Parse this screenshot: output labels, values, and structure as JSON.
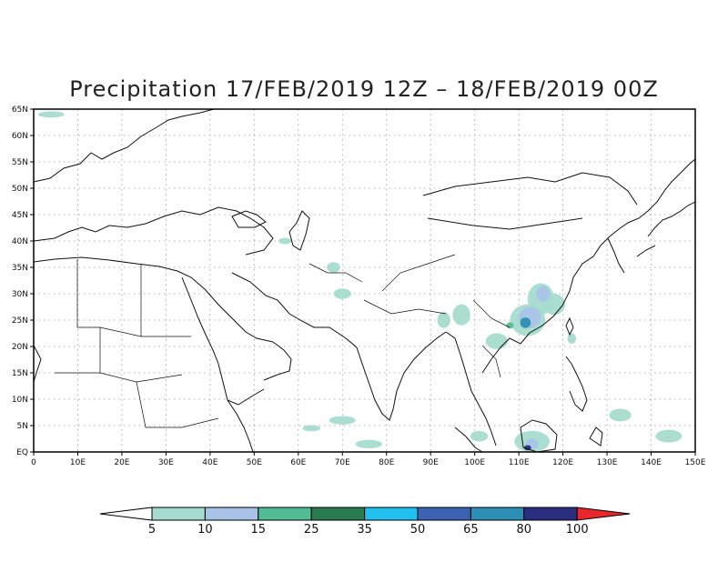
{
  "title": "Precipitation 17/FEB/2019 12Z – 18/FEB/2019 00Z",
  "map": {
    "lon_ticks": [
      "0",
      "10E",
      "20E",
      "30E",
      "40E",
      "50E",
      "60E",
      "70E",
      "80E",
      "90E",
      "100E",
      "110E",
      "120E",
      "130E",
      "140E",
      "150E"
    ],
    "lat_ticks": [
      "EQ",
      "5N",
      "10N",
      "15N",
      "20N",
      "25N",
      "30N",
      "35N",
      "40N",
      "45N",
      "50N",
      "55N",
      "60N",
      "65N"
    ],
    "lon_range": [
      0,
      150
    ],
    "lat_range": [
      0,
      65
    ],
    "gridlines": true
  },
  "colorbar": {
    "labels": [
      "5",
      "10",
      "15",
      "25",
      "35",
      "50",
      "65",
      "80",
      "100"
    ],
    "colors": [
      "#ffffff",
      "#a6dccf",
      "#a9c3e8",
      "#52bd95",
      "#2a7a50",
      "#22c0ee",
      "#3c62b4",
      "#2d8fb4",
      "#2b2d7e",
      "#e8262b"
    ]
  },
  "precip_areas": [
    {
      "level": 0,
      "lon": 112,
      "lat": 25,
      "rlon": 4,
      "rlat": 3
    },
    {
      "level": 0,
      "lon": 115,
      "lat": 29,
      "rlon": 3,
      "rlat": 3
    },
    {
      "level": 0,
      "lon": 118,
      "lat": 28,
      "rlon": 2.5,
      "rlat": 2
    },
    {
      "level": 0,
      "lon": 97,
      "lat": 26,
      "rlon": 2,
      "rlat": 2
    },
    {
      "level": 0,
      "lon": 93,
      "lat": 25,
      "rlon": 1.5,
      "rlat": 1.5
    },
    {
      "level": 0,
      "lon": 105,
      "lat": 21,
      "rlon": 2.5,
      "rlat": 1.5
    },
    {
      "level": 0,
      "lon": 68,
      "lat": 35,
      "rlon": 1.5,
      "rlat": 1
    },
    {
      "level": 0,
      "lon": 70,
      "lat": 30,
      "rlon": 2,
      "rlat": 1
    },
    {
      "level": 0,
      "lon": 57,
      "lat": 40,
      "rlon": 1.5,
      "rlat": 0.6
    },
    {
      "level": 0,
      "lon": 70,
      "lat": 6,
      "rlon": 3,
      "rlat": 0.8
    },
    {
      "level": 0,
      "lon": 63,
      "lat": 4.5,
      "rlon": 2,
      "rlat": 0.6
    },
    {
      "level": 0,
      "lon": 76,
      "lat": 1.5,
      "rlon": 3,
      "rlat": 0.8
    },
    {
      "level": 0,
      "lon": 101,
      "lat": 3,
      "rlon": 2,
      "rlat": 1
    },
    {
      "level": 0,
      "lon": 113,
      "lat": 2,
      "rlon": 4,
      "rlat": 2
    },
    {
      "level": 0,
      "lon": 122,
      "lat": 21.5,
      "rlon": 1,
      "rlat": 1
    },
    {
      "level": 0,
      "lon": 133,
      "lat": 7,
      "rlon": 2.5,
      "rlat": 1.2
    },
    {
      "level": 0,
      "lon": 144,
      "lat": 3,
      "rlon": 3,
      "rlat": 1.2
    },
    {
      "level": 0,
      "lon": 4,
      "lat": 64,
      "rlon": 3,
      "rlat": 0.6
    },
    {
      "level": 1,
      "lon": 112.5,
      "lat": 25.5,
      "rlon": 2.5,
      "rlat": 2
    },
    {
      "level": 1,
      "lon": 115.5,
      "lat": 30,
      "rlon": 1.5,
      "rlat": 1.5
    },
    {
      "level": 1,
      "lon": 113,
      "lat": 1.5,
      "rlon": 1.5,
      "rlat": 1
    },
    {
      "level": 2,
      "lon": 108,
      "lat": 24,
      "rlon": 0.8,
      "rlat": 0.6
    },
    {
      "level": 6,
      "lon": 111.5,
      "lat": 24.5,
      "rlon": 1.2,
      "rlat": 1
    },
    {
      "level": 7,
      "lon": 112,
      "lat": 0.8,
      "rlon": 0.8,
      "rlat": 0.5
    }
  ]
}
